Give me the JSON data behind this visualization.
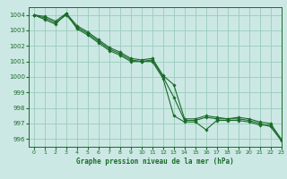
{
  "title": "Graphe pression niveau de la mer (hPa)",
  "background_color": "#cce8e4",
  "grid_color": "#99ccbb",
  "line_color": "#1a6b2a",
  "xlim": [
    -0.5,
    23
  ],
  "ylim": [
    995.5,
    1004.5
  ],
  "yticks": [
    996,
    997,
    998,
    999,
    1000,
    1001,
    1002,
    1003,
    1004
  ],
  "xticks": [
    0,
    1,
    2,
    3,
    4,
    5,
    6,
    7,
    8,
    9,
    10,
    11,
    12,
    13,
    14,
    15,
    16,
    17,
    18,
    19,
    20,
    21,
    22,
    23
  ],
  "series": [
    [
      1004.0,
      1003.8,
      1003.5,
      1004.0,
      1003.2,
      1002.8,
      1002.3,
      1001.8,
      1001.5,
      1001.1,
      1001.0,
      1001.1,
      1000.0,
      998.7,
      997.2,
      997.2,
      997.4,
      997.3,
      997.3,
      997.3,
      997.2,
      997.0,
      996.8,
      995.9
    ],
    [
      1004.0,
      1003.7,
      1003.4,
      1004.1,
      1003.1,
      1002.7,
      1002.2,
      1001.7,
      1001.4,
      1001.0,
      1001.0,
      1001.0,
      999.9,
      997.5,
      997.1,
      997.1,
      996.6,
      997.2,
      997.2,
      997.2,
      997.1,
      996.9,
      996.9,
      995.9
    ],
    [
      1004.0,
      1003.9,
      1003.6,
      1004.1,
      1003.3,
      1002.9,
      1002.4,
      1001.9,
      1001.6,
      1001.2,
      1001.1,
      1001.2,
      1000.1,
      999.5,
      997.3,
      997.3,
      997.5,
      997.4,
      997.3,
      997.4,
      997.3,
      997.1,
      997.0,
      996.0
    ]
  ]
}
